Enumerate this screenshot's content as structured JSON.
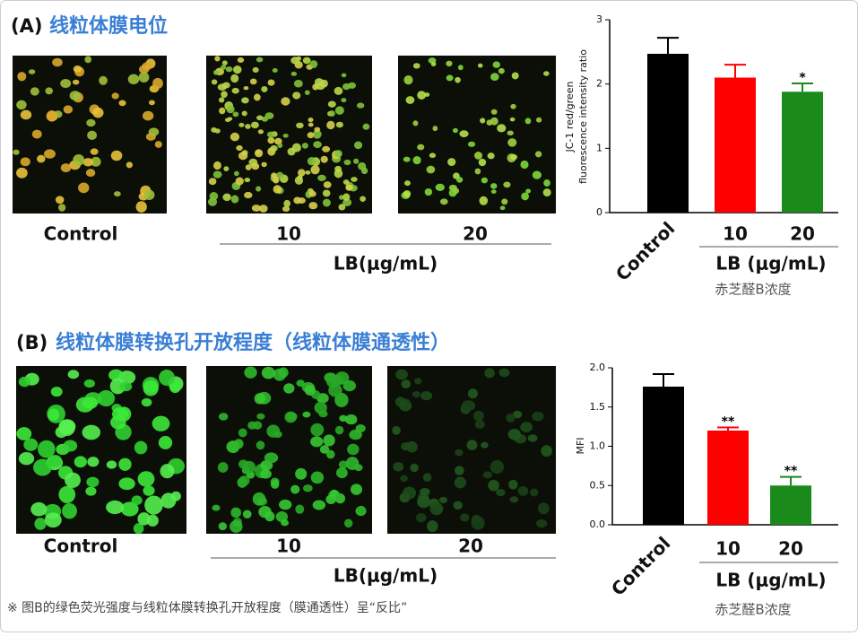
{
  "panels": [
    {
      "label": "(A)",
      "title": "线粒体膜电位",
      "image_labels": [
        "Control",
        "10",
        "20"
      ],
      "group_label": "LB(μg/mL)"
    },
    {
      "label": "(B)",
      "title": "线粒体膜转换孔开放程度（线粒体膜通透性）",
      "image_labels": [
        "Control",
        "10",
        "20"
      ],
      "group_label": "LB(μg/mL)"
    }
  ],
  "chart_data": [
    {
      "type": "bar",
      "y_label_lines": [
        "JC-1 red/green",
        "fluorescence intensity ratio"
      ],
      "categories": [
        "Control",
        "10",
        "20"
      ],
      "values": [
        2.47,
        2.1,
        1.88
      ],
      "errors": [
        0.25,
        0.2,
        0.13
      ],
      "annotations": [
        null,
        null,
        "*"
      ],
      "colors": [
        "#000000",
        "#ff0000",
        "#1a8a1a"
      ],
      "group_label": "LB (μg/mL)",
      "subtitle": "赤芝醛B浓度",
      "ylim": [
        0,
        3
      ],
      "yticks": [
        0,
        1,
        2,
        3
      ]
    },
    {
      "type": "bar",
      "y_label_lines": [
        "MFI"
      ],
      "categories": [
        "Control",
        "10",
        "20"
      ],
      "values": [
        1.76,
        1.2,
        0.5
      ],
      "errors": [
        0.16,
        0.04,
        0.11
      ],
      "annotations": [
        null,
        "**",
        "**"
      ],
      "colors": [
        "#000000",
        "#ff0000",
        "#1a8a1a"
      ],
      "group_label": "LB (μg/mL)",
      "subtitle": "赤芝醛B浓度",
      "ylim": [
        0,
        2
      ],
      "yticks": [
        {
          "value": 0,
          "label": "0.0"
        },
        {
          "value": 0.5,
          "label": "0.5"
        },
        {
          "value": 1,
          "label": "1.0"
        },
        {
          "value": 1.5,
          "label": "1.5"
        },
        {
          "value": 2,
          "label": "2.0"
        }
      ]
    }
  ],
  "footnote": "※ 图B的绿色荧光强度与线粒体膜转换孔开放程度（膜通透性）呈“反比”"
}
